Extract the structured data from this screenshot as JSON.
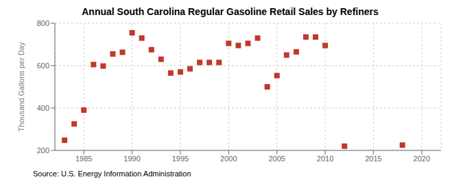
{
  "chart_data": {
    "type": "scatter",
    "title": "Annual South Carolina Regular Gasoline Retail Sales by Refiners",
    "y_label": "Thousand Gallons per Day",
    "annotations": [
      "Source: U.S. Energy Information Administration"
    ],
    "x": [
      1983,
      1984,
      1985,
      1986,
      1987,
      1988,
      1989,
      1990,
      1991,
      1992,
      1993,
      1994,
      1995,
      1996,
      1997,
      1998,
      1999,
      2000,
      2001,
      2002,
      2003,
      2004,
      2005,
      2006,
      2007,
      2008,
      2009,
      2010,
      2012,
      2018
    ],
    "values": [
      248,
      325,
      390,
      605,
      598,
      655,
      663,
      755,
      730,
      675,
      630,
      565,
      570,
      585,
      615,
      615,
      615,
      705,
      695,
      705,
      730,
      500,
      553,
      650,
      665,
      735,
      735,
      695,
      220,
      225
    ],
    "color": "#c0392b",
    "marker": "square",
    "xlim": [
      1982,
      2022
    ],
    "xticks": [
      1985,
      1990,
      1995,
      2000,
      2005,
      2010,
      2015,
      2020
    ],
    "ylim": [
      200,
      800
    ],
    "yticks": [
      200,
      400,
      600,
      800
    ],
    "grid": true
  }
}
